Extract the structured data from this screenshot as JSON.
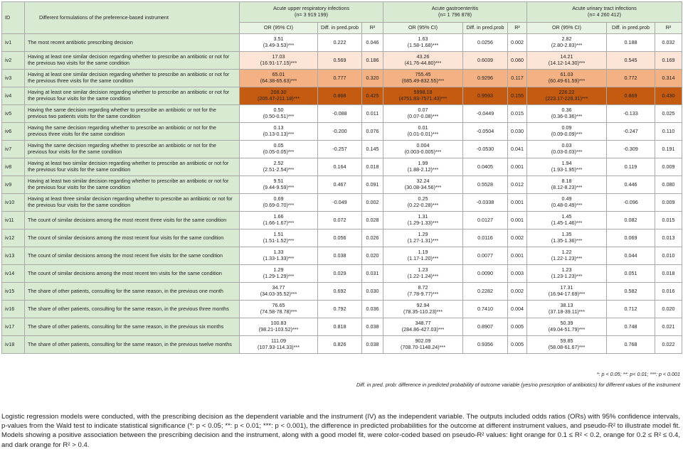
{
  "table": {
    "header": {
      "id": "ID",
      "description": "Different formulations of  the preference-based instrument",
      "groups": [
        {
          "name": "Acute upper respiratory infections",
          "n": "(n= 3 919 199)"
        },
        {
          "name": "Acute gastroenteritis",
          "n": "(n= 1 796 878)"
        },
        {
          "name": "Acute urinary tract infections",
          "n": "(n= 4 260 412)"
        }
      ],
      "subheaders": [
        "OR (95% CI)",
        "Diff. in pred.prob",
        "R²"
      ]
    },
    "rows": [
      {
        "id": "iv1",
        "description": "The most recent antibiotic prescribing decision",
        "cells": [
          [
            "3.51",
            "(3.49-3.53)***",
            "0.222",
            "0.046"
          ],
          [
            "1.63",
            "(1.58-1.68)***",
            "0.0256",
            "0.002"
          ],
          [
            "2.82",
            "(2.80-2.83)***",
            "0.188",
            "0.032"
          ]
        ]
      },
      {
        "id": "iv2",
        "description": "Having at least one similar decision regarding whether to prescribe an antibiotic or not for the previous two visits for the same condition",
        "highlight": "#fce4d6",
        "cells": [
          [
            "17.03",
            "(16.91-17.15)***",
            "0.569",
            "0.186"
          ],
          [
            "43.26",
            "(41.76-44.80)***",
            "0.6039",
            "0.060"
          ],
          [
            "14.21",
            "(14.12-14.30)***",
            "0.545",
            "0.169"
          ]
        ]
      },
      {
        "id": "iv3",
        "description": "Having at least one similar decision regarding whether to prescribe an antibiotic or not for the previous three visits for the same condition",
        "highlight": "#f4b183",
        "cells": [
          [
            "65.01",
            "(64.38-65.63)***",
            "0.777",
            "0.320"
          ],
          [
            "755.45",
            "(685.49-832.55)***",
            "0.9296",
            "0.117"
          ],
          [
            "61.03",
            "(60.49-61.59)***",
            "0.772",
            "0.314"
          ]
        ]
      },
      {
        "id": "iv4",
        "description": "Having at least one similar decision regarding whether to prescribe an antibiotic or not for the previous four visits for the same condition",
        "highlight": "#c55a11",
        "cells": [
          [
            "208.30",
            "(205.47-211.18)***",
            "0.868",
            "0.425"
          ],
          [
            "5998.18",
            "(4751.83-7571.43)***",
            "0.9593",
            "0.155"
          ],
          [
            "226.22",
            "(223.17-229.31)***",
            "0.869",
            "0.430"
          ]
        ]
      },
      {
        "id": "iv5",
        "description": "Having the same decision regarding whether to prescribe an antibiotic or not for the previous two patients visits for the same condition",
        "cells": [
          [
            "0.50",
            "(0.50-0.51)***",
            "-0.088",
            "0.011"
          ],
          [
            "0.07",
            "(0.07-0.08)***",
            "-0.0449",
            "0.015"
          ],
          [
            "0.36",
            "(0.36-0.36)***",
            "-0.133",
            "0.025"
          ]
        ]
      },
      {
        "id": "iv6",
        "description": "Having the same decision regarding whether to prescribe an antibiotic or not for the previous three visits for the same condition",
        "cells": [
          [
            "0.13",
            "(0.13-0.13)***",
            "-0.200",
            "0.076"
          ],
          [
            "0.01",
            "(0.01-0.01)***",
            "-0.0504",
            "0.030"
          ],
          [
            "0.09",
            "(0.09-0.09)***",
            "-0.247",
            "0.110"
          ]
        ]
      },
      {
        "id": "iv7",
        "description": "Having the same decision regarding whether to prescribe an antibiotic or not for the previous four visits for the same condition",
        "cells": [
          [
            "0.05",
            "(0.05-0.05)***",
            "-0.257",
            "0.145"
          ],
          [
            "0.004",
            "(0.003-0.005)***",
            "-0.0530",
            "0.041"
          ],
          [
            "0.03",
            "(0.03-0.03)***",
            "-0.309",
            "0.191"
          ]
        ]
      },
      {
        "id": "iv8",
        "description": "Having at least two similar decision regarding whether to prescribe an antibiotic or not for the previous four visits for the same condition",
        "cells": [
          [
            "2.52",
            "(2.51-2.54)***",
            "0.164",
            "0.018"
          ],
          [
            "1.99",
            "(1.88-2.12)***",
            "0.0405",
            "0.001"
          ],
          [
            "1.94",
            "(1.93-1.95)***",
            "0.119",
            "0.009"
          ]
        ]
      },
      {
        "id": "iv9",
        "description": "Having at least two similar decision regarding whether to prescribe an antibiotic or not for the previous four visits for the same condition",
        "cells": [
          [
            "9.51",
            "(9.44-9.59)***",
            "0.467",
            "0.091"
          ],
          [
            "32.24",
            "(30.08-34.56)***",
            "0.5528",
            "0.012"
          ],
          [
            "8.18",
            "(8.12-8.23)***",
            "0.446",
            "0.080"
          ]
        ]
      },
      {
        "id": "iv10",
        "description": "Having at least three similar decision regarding whether to prescribe an antibiotic or not for the previous four visits for the same condition",
        "cells": [
          [
            "0.69",
            "(0.69-0.70)***",
            "-0.049",
            "0.002"
          ],
          [
            "0.25",
            "(0.22-0.28)***",
            "-0.0338",
            "0.001"
          ],
          [
            "0.49",
            "(0.48-0.49)***",
            "-0.096",
            "0.009"
          ]
        ]
      },
      {
        "id": "iv11",
        "description": "The count of similar decisions among the most recent three visits for the same condition",
        "cells": [
          [
            "1.66",
            "(1.66-1.67)***",
            "0.072",
            "0.028"
          ],
          [
            "1.31",
            "(1.29-1.33)***",
            "0.0127",
            "0.001"
          ],
          [
            "1.45",
            "(1.45-1.46)***",
            "0.082",
            "0.015"
          ]
        ]
      },
      {
        "id": "iv12",
        "description": "The count of similar decisions among the most recent four visits for the same condition",
        "cells": [
          [
            "1.51",
            "(1.51-1.52)***",
            "0.056",
            "0.026"
          ],
          [
            "1.29",
            "(1.27-1.31)***",
            "0.0116",
            "0.002"
          ],
          [
            "1.35",
            "(1.35-1.36)***",
            "0.069",
            "0.013"
          ]
        ]
      },
      {
        "id": "iv13",
        "description": "The count of similar decisions among the most recent five visits for the same condition",
        "cells": [
          [
            "1.33",
            "(1.33-1.33)***",
            "0.038",
            "0.020"
          ],
          [
            "1.19",
            "(1.17-1.20)***",
            "0.0077",
            "0.001"
          ],
          [
            "1.22",
            "(1.22-1.23)***",
            "0.044",
            "0.010"
          ]
        ]
      },
      {
        "id": "iv14",
        "description": "The count of similar decisions among the most recent ten visits for the same condition",
        "cells": [
          [
            "1.29",
            "(1.29-1.29)***",
            "0.029",
            "0.031"
          ],
          [
            "1.23",
            "(1.22-1.24)***",
            "0.0090",
            "0.003"
          ],
          [
            "1.23",
            "(1.23-1.23)***",
            "0.051",
            "0.018"
          ]
        ]
      },
      {
        "id": "iv15",
        "description": "The share of other patients, consulting for the same reason, in the previous one month",
        "cells": [
          [
            "34.77",
            "(34.03-35.52)***",
            "0.692",
            "0.030"
          ],
          [
            "8.72",
            "(7.78-9.77)***",
            "0.2282",
            "0.002"
          ],
          [
            "17.31",
            "(16.94-17.69)***",
            "0.582",
            "0.016"
          ]
        ]
      },
      {
        "id": "iv16",
        "description": "The share of other patients, consulting for the same reason, in the previous three months",
        "cells": [
          [
            "76.65",
            "(74.58-78.78)***",
            "0.792",
            "0.036"
          ],
          [
            "92.94",
            "(78.35-110.23)***",
            "0.7410",
            "0.004"
          ],
          [
            "38.13",
            "(37.18-39.11)***",
            "0.712",
            "0.020"
          ]
        ]
      },
      {
        "id": "iv17",
        "description": "The share of other patients, consulting for the same reason, in the previous six months",
        "cells": [
          [
            "100.83",
            "(98.21-103.52)***",
            "0.818",
            "0.038"
          ],
          [
            "348.77",
            "(284.86-427.03)***",
            "0.8907",
            "0.005"
          ],
          [
            "50.39",
            "(49.04-51.79)***",
            "0.748",
            "0.021"
          ]
        ]
      },
      {
        "id": "iv18",
        "description": "The share of other patients, consulting for the same reason, in the previous twelve months",
        "cells": [
          [
            "111.09",
            "(107.93-114.33)***",
            "0.826",
            "0.038"
          ],
          [
            "902.09",
            "(708.70-1148.24)***",
            "0.9356",
            "0.005"
          ],
          [
            "59.85",
            "(58.08-61.67)***",
            "0.768",
            "0.022"
          ]
        ]
      }
    ]
  },
  "notes": {
    "significance": "*: p < 0.05; **: p< 0.01; ***: p < 0.001",
    "diff": "Diff. in pred. prob: difference in predicted probability of outcome variable (yes/no prescription of antibiotics) for different values of the instrument"
  },
  "caption": "Logistic regression models were conducted, with the prescribing decision as the dependent variable and the instrument (IV) as the independent variable. The outputs included odds ratios (ORs) with 95% confidence intervals, p-values from the Wald test to indicate statistical significance (*: p < 0.05; **: p < 0.01; ***: p < 0.001), the difference in predicted probabilities for the outcome at different instrument values, and pseudo-R² to illustrate model fit. Models showing a positive association between the prescribing decision and the instrument, along with a good model fit, were color-coded based on pseudo-R² values: light orange for 0.1 ≤ R² < 0.2, orange for 0.2 ≤ R² ≤ 0.4, and dark orange for R² > 0.4."
}
